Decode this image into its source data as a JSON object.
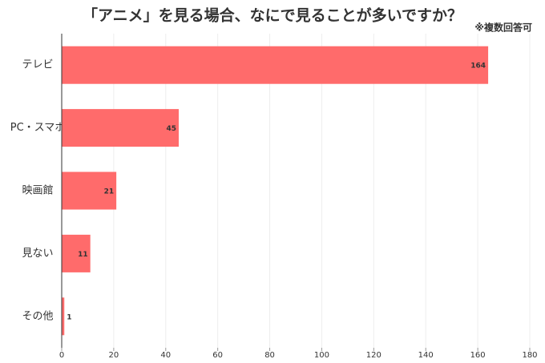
{
  "chart_data": {
    "type": "hbar",
    "title": "「アニメ」を見る場合、なにで見ることが多いですか？",
    "note": "※複数回答可",
    "categories": [
      "テレビ",
      "PC・スマホ",
      "映画館",
      "見ない",
      "その他"
    ],
    "values": [
      164,
      45,
      21,
      11,
      1
    ],
    "color": "#ff6b6b",
    "xlim": [
      0,
      180
    ],
    "xticks": [
      0,
      20,
      40,
      60,
      80,
      100,
      120,
      140,
      160,
      180
    ],
    "grid": true
  }
}
